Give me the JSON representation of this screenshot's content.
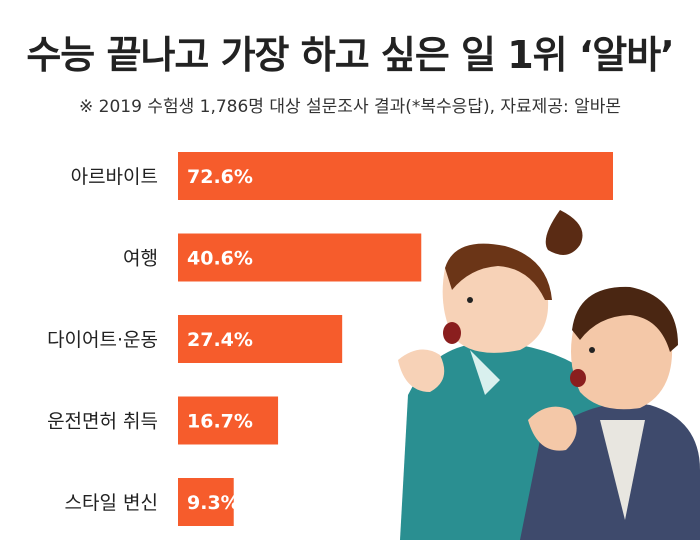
{
  "title": "수능 끝나고 가장 하고 싶은 일 1위 ‘알바’",
  "subtitle": "※ 2019 수험생 1,786명 대상 설문조사 결과(*복수응답),  자료제공: 알바몬",
  "colors": {
    "bar": "#f65c2c",
    "background": "#ffffff",
    "illustration_jacket_girl": "#2a8f91",
    "illustration_jacket_boy": "#3e4a6c"
  },
  "chart_data": {
    "type": "bar",
    "orientation": "horizontal",
    "categories": [
      "아르바이트",
      "여행",
      "다이어트·운동",
      "운전면허 취득",
      "스타일 변신"
    ],
    "values": [
      72.6,
      40.6,
      27.4,
      16.7,
      9.3
    ],
    "value_labels": [
      "72.6%",
      "40.6%",
      "27.4%",
      "16.7%",
      "9.3%"
    ],
    "unit": "%",
    "xlim": [
      0,
      100
    ],
    "grid": false,
    "legend": "none"
  }
}
